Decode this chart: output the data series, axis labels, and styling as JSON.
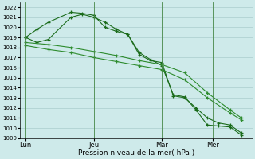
{
  "background_color": "#ceeaea",
  "grid_color_major": "#aacccc",
  "grid_color_minor": "#c0dddd",
  "line_colors": [
    "#1a6b1a",
    "#1a6b1a",
    "#2d8b2d",
    "#2d8b2d"
  ],
  "xlabel": "Pression niveau de la mer( hPa )",
  "ylim": [
    1009,
    1022.5
  ],
  "yticks": [
    1009,
    1010,
    1011,
    1012,
    1013,
    1014,
    1015,
    1016,
    1017,
    1018,
    1019,
    1020,
    1021,
    1022
  ],
  "xtick_labels": [
    "Lun",
    "Jeu",
    "Mar",
    "Mer"
  ],
  "xtick_positions": [
    0,
    12,
    24,
    33
  ],
  "vline_positions": [
    0,
    12,
    24,
    33
  ],
  "xlim": [
    -1,
    40
  ],
  "series": [
    {
      "x": [
        0,
        2,
        4,
        8,
        10,
        12,
        14,
        16,
        18,
        20,
        22,
        24,
        26,
        28,
        30,
        32,
        34,
        36,
        38
      ],
      "y": [
        1019.0,
        1019.8,
        1020.5,
        1021.5,
        1021.4,
        1021.2,
        1020.0,
        1019.6,
        1019.3,
        1017.5,
        1016.8,
        1016.2,
        1013.3,
        1013.1,
        1011.8,
        1010.3,
        1010.2,
        1010.1,
        1009.3
      ]
    },
    {
      "x": [
        0,
        2,
        4,
        8,
        10,
        12,
        14,
        16,
        18,
        20,
        22,
        24,
        26,
        28,
        30,
        32,
        34,
        36,
        38
      ],
      "y": [
        1019.0,
        1018.5,
        1018.8,
        1021.0,
        1021.3,
        1021.0,
        1020.5,
        1019.8,
        1019.3,
        1017.3,
        1016.7,
        1016.5,
        1013.2,
        1013.0,
        1012.0,
        1011.0,
        1010.5,
        1010.3,
        1009.5
      ]
    },
    {
      "x": [
        0,
        4,
        8,
        12,
        16,
        20,
        24,
        28,
        32,
        36,
        38
      ],
      "y": [
        1018.5,
        1018.3,
        1018.0,
        1017.6,
        1017.2,
        1016.7,
        1016.3,
        1015.5,
        1013.5,
        1011.8,
        1011.0
      ]
    },
    {
      "x": [
        0,
        4,
        8,
        12,
        16,
        20,
        24,
        28,
        32,
        36,
        38
      ],
      "y": [
        1018.2,
        1017.8,
        1017.5,
        1017.0,
        1016.6,
        1016.2,
        1015.8,
        1014.8,
        1013.0,
        1011.5,
        1010.8
      ]
    }
  ]
}
